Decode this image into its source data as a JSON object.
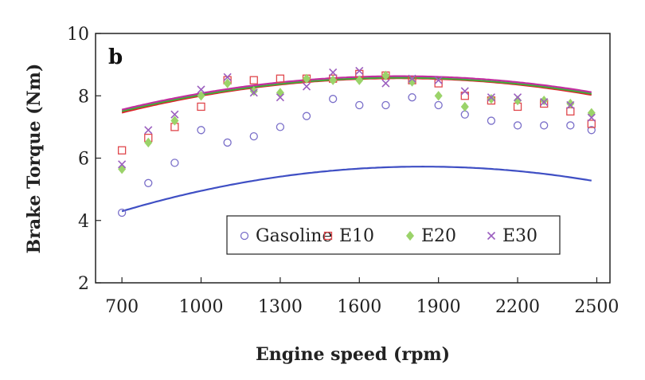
{
  "chart_data": {
    "type": "scatter",
    "panel_label": "b",
    "xlabel": "Engine speed (rpm)",
    "ylabel": "Brake Torque (Nm)",
    "xlim": [
      600,
      2550
    ],
    "ylim": [
      2,
      10
    ],
    "xticks": [
      700,
      1000,
      1300,
      1600,
      1900,
      2200,
      2500
    ],
    "yticks": [
      2,
      4,
      6,
      8,
      10
    ],
    "grid": false,
    "legend_position": "bottom-right",
    "series": [
      {
        "name": "Gasoline",
        "marker": "circle",
        "color": "#7a6fc9",
        "fit_color": "#3f4fc4",
        "x": [
          700,
          800,
          900,
          1000,
          1100,
          1200,
          1300,
          1400,
          1500,
          1600,
          1700,
          1800,
          1900,
          2000,
          2100,
          2200,
          2300,
          2400,
          2480
        ],
        "y": [
          4.25,
          5.2,
          5.85,
          6.9,
          6.5,
          6.7,
          7.0,
          7.35,
          7.9,
          7.7,
          7.7,
          7.95,
          7.7,
          7.4,
          7.2,
          7.05,
          7.05,
          7.05,
          6.9
        ],
        "fit": [
          -1.1e-06,
          0.00405,
          2.0
        ]
      },
      {
        "name": "E10",
        "marker": "square",
        "color": "#e0474c",
        "fit_color": "#e0202a",
        "x": [
          700,
          800,
          900,
          1000,
          1100,
          1200,
          1300,
          1400,
          1500,
          1600,
          1700,
          1800,
          1900,
          2000,
          2100,
          2200,
          2300,
          2400,
          2480
        ],
        "y": [
          6.25,
          6.65,
          7.0,
          7.65,
          8.5,
          8.5,
          8.55,
          8.55,
          8.55,
          8.7,
          8.65,
          8.5,
          8.4,
          8.0,
          7.85,
          7.65,
          7.75,
          7.5,
          7.1
        ],
        "fit": [
          -1e-06,
          0.0035,
          5.5
        ]
      },
      {
        "name": "E20",
        "marker": "diamond",
        "color": "#9bd36a",
        "fit_color": "#3fae3a",
        "x": [
          700,
          800,
          900,
          1000,
          1100,
          1200,
          1300,
          1400,
          1500,
          1600,
          1700,
          1800,
          1900,
          2000,
          2100,
          2200,
          2300,
          2400,
          2480
        ],
        "y": [
          5.65,
          6.5,
          7.2,
          8.0,
          8.4,
          8.15,
          8.1,
          8.55,
          8.5,
          8.5,
          8.65,
          8.45,
          8.0,
          7.65,
          7.9,
          7.85,
          7.85,
          7.75,
          7.45
        ],
        "fit": [
          -9.7e-07,
          0.0034,
          5.6
        ]
      },
      {
        "name": "E30",
        "marker": "x",
        "color": "#9b5fbf",
        "fit_color": "#c22fa0",
        "x": [
          700,
          800,
          900,
          1000,
          1100,
          1200,
          1300,
          1400,
          1500,
          1600,
          1700,
          1800,
          1900,
          2000,
          2100,
          2200,
          2300,
          2400,
          2480
        ],
        "y": [
          5.8,
          6.9,
          7.4,
          8.2,
          8.6,
          8.1,
          7.95,
          8.3,
          8.75,
          8.8,
          8.4,
          8.55,
          8.5,
          8.15,
          7.95,
          7.95,
          7.8,
          7.7,
          7.3
        ],
        "fit": [
          -9.7e-07,
          0.0034,
          5.65
        ]
      }
    ]
  }
}
